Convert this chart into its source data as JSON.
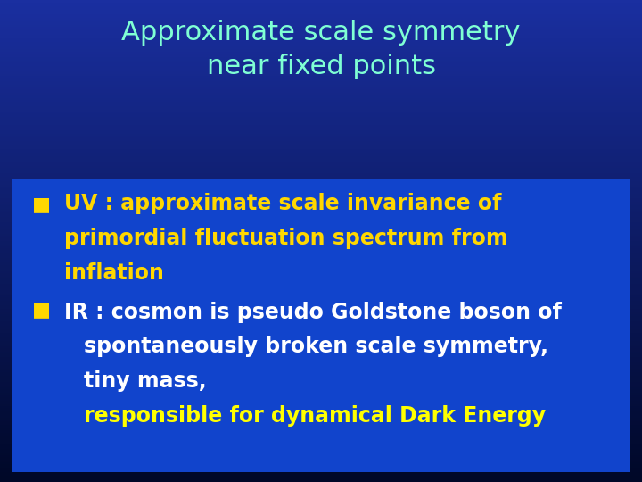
{
  "title_line1": "Approximate scale symmetry",
  "title_line2": "near fixed points",
  "title_color": "#7FFFD4",
  "bg_color_top": "#000820",
  "bg_color_bottom": "#001890",
  "box_color": "#1144CC",
  "bullet_color": "#FFD700",
  "bullet1_text_color": "#FFD700",
  "bullet2_line1_color": "#FFFFFF",
  "bullet2_lines_color": "#FFFFFF",
  "dark_energy_color": "#FFFF00",
  "bullet1_text": "UV : approximate scale invariance of",
  "bullet1_line2": "primordial fluctuation spectrum from",
  "bullet1_line3": "inflation",
  "bullet2_line1": "IR : cosmon is pseudo Goldstone boson of",
  "bullet2_line2": "spontaneously broken scale symmetry,",
  "bullet2_line3": "tiny mass,",
  "bullet2_line4": "responsible for dynamical Dark Energy",
  "title_fontsize": 22,
  "bullet_fontsize": 17,
  "figsize": [
    7.2,
    5.4
  ],
  "dpi": 100
}
